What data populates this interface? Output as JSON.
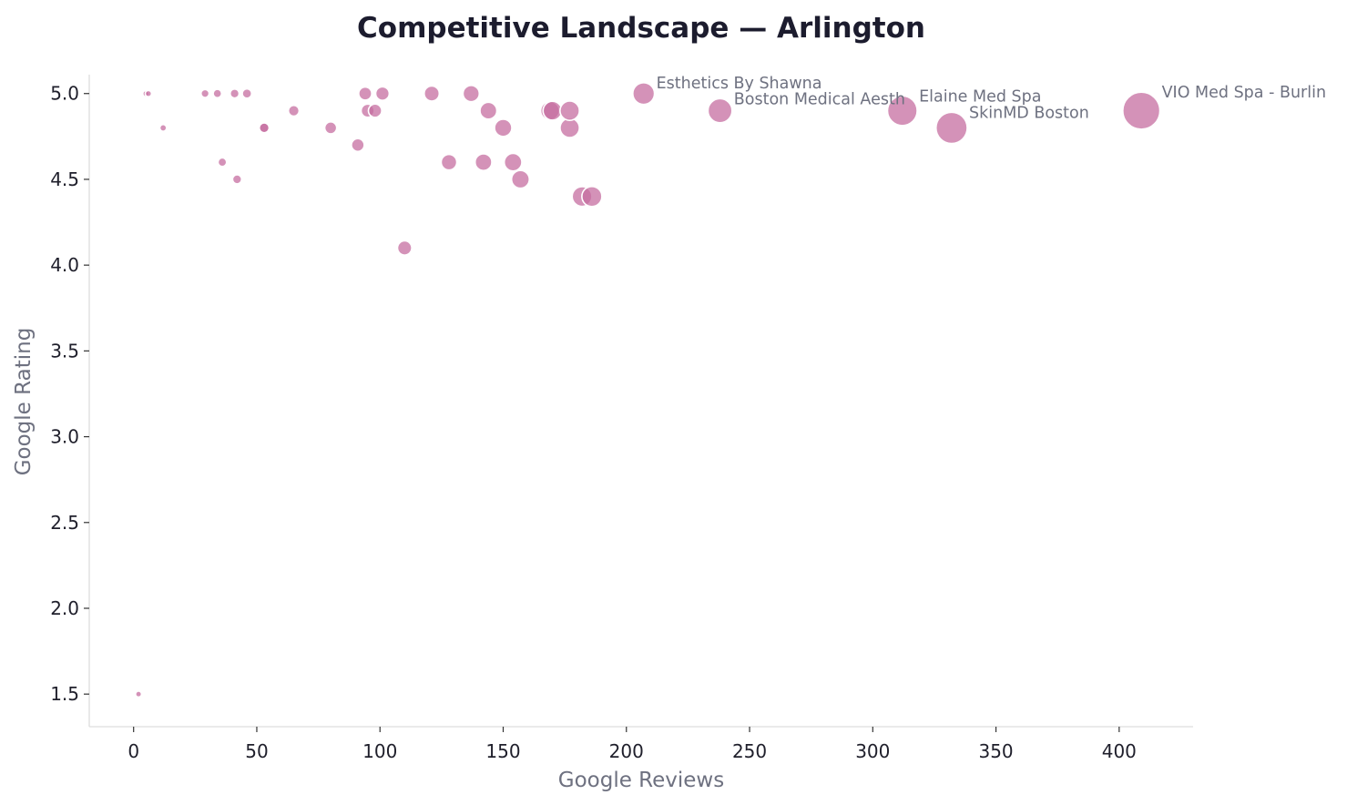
{
  "chart_data": {
    "type": "scatter",
    "title": "Competitive Landscape — Arlington",
    "xlabel": "Google Reviews",
    "ylabel": "Google Rating",
    "xlim": [
      -18,
      430
    ],
    "ylim": [
      1.31,
      5.11
    ],
    "xticks": [
      0,
      50,
      100,
      150,
      200,
      250,
      300,
      350,
      400
    ],
    "yticks": [
      1.5,
      2.0,
      2.5,
      3.0,
      3.5,
      4.0,
      4.5,
      5.0
    ],
    "grid": false,
    "marker_color": "#c66ea0",
    "marker_edge_color": "#ffffff",
    "size_encodes": "Google Reviews",
    "points": [
      {
        "x": 2,
        "y": 1.5
      },
      {
        "x": 5,
        "y": 5.0
      },
      {
        "x": 6,
        "y": 5.0
      },
      {
        "x": 12,
        "y": 4.8
      },
      {
        "x": 29,
        "y": 5.0
      },
      {
        "x": 34,
        "y": 5.0
      },
      {
        "x": 36,
        "y": 4.6
      },
      {
        "x": 41,
        "y": 5.0
      },
      {
        "x": 42,
        "y": 4.5
      },
      {
        "x": 46,
        "y": 5.0
      },
      {
        "x": 53,
        "y": 4.8
      },
      {
        "x": 53,
        "y": 4.8
      },
      {
        "x": 65,
        "y": 4.9
      },
      {
        "x": 80,
        "y": 4.8
      },
      {
        "x": 91,
        "y": 4.7
      },
      {
        "x": 94,
        "y": 5.0
      },
      {
        "x": 95,
        "y": 4.9
      },
      {
        "x": 98,
        "y": 4.9
      },
      {
        "x": 101,
        "y": 5.0
      },
      {
        "x": 110,
        "y": 4.1
      },
      {
        "x": 121,
        "y": 5.0
      },
      {
        "x": 128,
        "y": 4.6
      },
      {
        "x": 137,
        "y": 5.0
      },
      {
        "x": 142,
        "y": 4.6
      },
      {
        "x": 144,
        "y": 4.9
      },
      {
        "x": 150,
        "y": 4.8
      },
      {
        "x": 154,
        "y": 4.6
      },
      {
        "x": 157,
        "y": 4.5
      },
      {
        "x": 169,
        "y": 4.9
      },
      {
        "x": 170,
        "y": 4.9
      },
      {
        "x": 177,
        "y": 4.8
      },
      {
        "x": 177,
        "y": 4.9
      },
      {
        "x": 182,
        "y": 4.4
      },
      {
        "x": 186,
        "y": 4.4
      },
      {
        "x": 207,
        "y": 5.0,
        "label": "Esthetics By Shawna"
      },
      {
        "x": 238,
        "y": 4.9,
        "label": "Boston Medical Aesth"
      },
      {
        "x": 312,
        "y": 4.9,
        "label": "Elaine Med Spa"
      },
      {
        "x": 332,
        "y": 4.8,
        "label": "SkinMD Boston"
      },
      {
        "x": 409,
        "y": 4.9,
        "label": "VIO Med Spa - Burlin"
      }
    ]
  }
}
